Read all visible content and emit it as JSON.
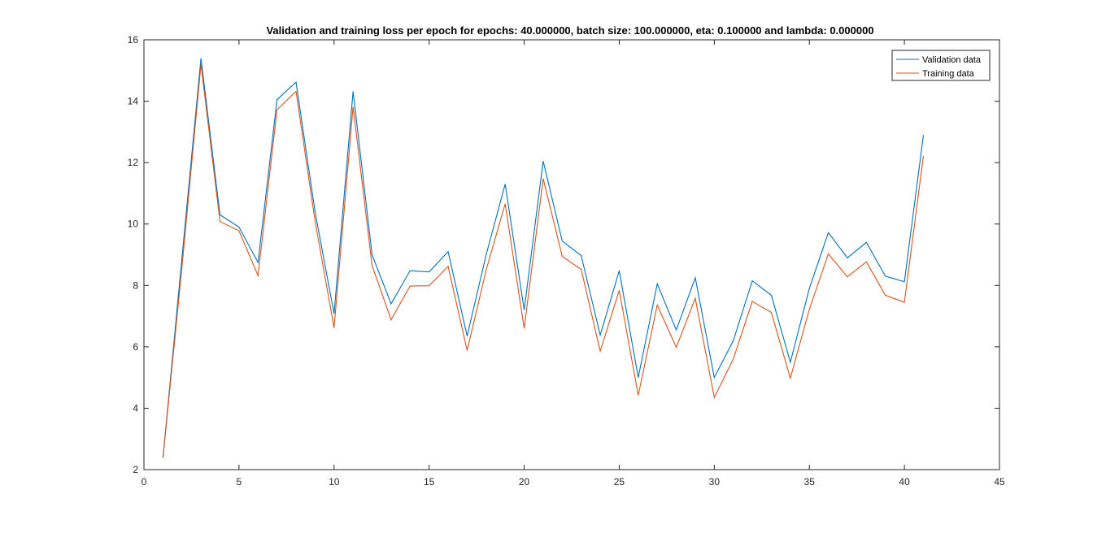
{
  "chart_data": {
    "type": "line",
    "title": "Validation and training loss per epoch for epochs: 40.000000, batch size: 100.000000, eta: 0.100000 and lambda: 0.000000",
    "xlabel": "",
    "ylabel": "",
    "xlim": [
      0,
      45
    ],
    "ylim": [
      2,
      16
    ],
    "xticks": [
      0,
      5,
      10,
      15,
      20,
      25,
      30,
      35,
      40,
      45
    ],
    "yticks": [
      2,
      4,
      6,
      8,
      10,
      12,
      14,
      16
    ],
    "grid": false,
    "legend_position": "top-right",
    "x": [
      1,
      2,
      3,
      4,
      5,
      6,
      7,
      8,
      9,
      10,
      11,
      12,
      13,
      14,
      15,
      16,
      17,
      18,
      19,
      20,
      21,
      22,
      23,
      24,
      25,
      26,
      27,
      28,
      29,
      30,
      31,
      32,
      33,
      34,
      35,
      36,
      37,
      38,
      39,
      40,
      41
    ],
    "series": [
      {
        "name": "Validation data",
        "color": "#0072BD",
        "values": [
          2.38,
          8.9,
          15.4,
          10.3,
          9.9,
          8.75,
          14.05,
          14.62,
          10.4,
          7.08,
          14.32,
          9.0,
          7.4,
          8.48,
          8.44,
          9.1,
          6.35,
          9.0,
          11.3,
          7.2,
          12.05,
          9.45,
          8.97,
          6.38,
          8.48,
          5.0,
          8.05,
          6.55,
          8.25,
          5.0,
          6.2,
          8.15,
          7.68,
          5.5,
          7.9,
          9.72,
          8.9,
          9.4,
          8.3,
          8.12,
          12.9
        ]
      },
      {
        "name": "Training data",
        "color": "#D95319",
        "values": [
          2.38,
          8.6,
          15.2,
          10.08,
          9.78,
          8.32,
          13.72,
          14.32,
          10.1,
          6.62,
          13.82,
          8.65,
          6.88,
          7.98,
          7.99,
          8.62,
          5.88,
          8.5,
          10.66,
          6.6,
          11.48,
          8.95,
          8.52,
          5.86,
          7.84,
          4.42,
          7.36,
          5.98,
          7.58,
          4.35,
          5.6,
          7.48,
          7.12,
          4.98,
          7.22,
          9.03,
          8.28,
          8.77,
          7.68,
          7.45,
          12.22
        ]
      }
    ]
  }
}
